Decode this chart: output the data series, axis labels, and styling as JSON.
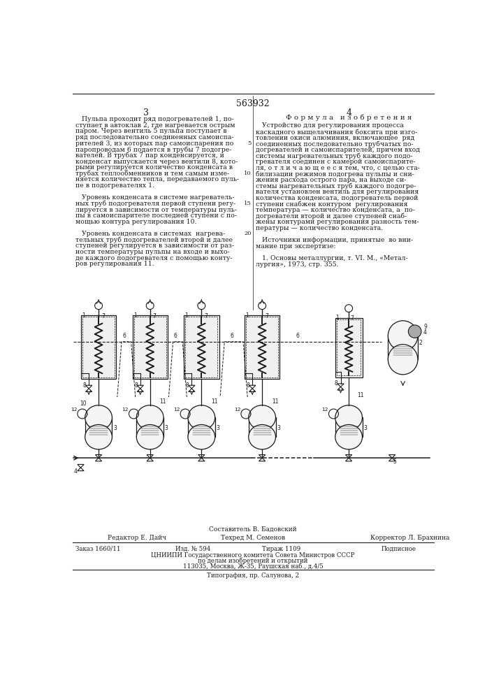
{
  "patent_number": "563932",
  "page_numbers": [
    "3",
    "4"
  ],
  "bg_color": "#ffffff",
  "text_color": "#1a1a1a",
  "left_column_text": [
    "   Пульпа проходит ряд подогревателей 1, по-",
    "ступает в автоклав 2, где нагревается острым",
    "паром. Через вентиль 5 пульпа поступает в",
    "ряд последовательно соединенных самоиспа-",
    "рителей 3, из которых пар самоиспарения по",
    "паропроводам 6 подается в трубы 7 подогре-",
    "вателей. В трубах 7 пар конденсируется, и",
    "конденсат выпускается через вентили 8, кото-",
    "рыми регулируется количество конденсата в",
    "трубах теплообменников и тем самым изме-",
    "няется количество тепла, передаваемого пуль-",
    "пе в подогревателях 1.",
    "",
    "   Уровень конденсата в системе нагреватель-",
    "ных труб подогревателя первой ступени регу-",
    "лируется в зависимости от температуры пуль-",
    "пы в самоиспарителе последней ступени с по-",
    "мощью контура регулирования 10.",
    "",
    "   Уровень конденсата в системах  нагрева-",
    "тельных труб подогревателей второй и далее",
    "ступеней регулируется в зависимости от раз-",
    "ности температуры пульпы на входе и выхо-",
    "де каждого подогревателя с помощью конту-",
    "ров регулирования 11."
  ],
  "right_column_header": "Ф о р м у л а   и з о б р е т е н и я",
  "right_column_text": [
    "   Устройство для регулирования процесса",
    "каскадного выщелачивания боксита при изго-",
    "товлении окиси алюминия, включающее  ряд",
    "соединенных последовательно трубчатых по-",
    "догревателей и самоиспарителей, причем вход",
    "системы нагревательных труб каждого подо-",
    "гревателя соединен с камерой самоиспарите-",
    "ля, о т л и ч а ю щ е е с я тем, что, с целью ста-",
    "билизации режимов подогрева пульпы и сни-",
    "жения расхода острого пара, на выходе си-",
    "стемы нагревательных труб каждого подогре-",
    "вателя установлен вентиль для регулирования",
    "количества конденсата, подогреватель первой",
    "ступени снабжен контуром  регулирования",
    "температура — количество конденсата, а  по-",
    "догреватели второй и далее ступеней снаб-",
    "жены контурами регулирования разность тем-",
    "пературы — количество конденсата.",
    "",
    "   Источники информации, принятые  во вни-",
    "мание при экспертизе:",
    "",
    "   1. Основы металлургии, т. VI. М., «Метал-",
    "лургия», 1973, стр. 355."
  ],
  "footer_composer": "Составитель В. Бадовский",
  "footer_editor": "Редактор Е. Дайч",
  "footer_tech": "Техред М. Семенов",
  "footer_corrector": "Корректор Л. Брахнина",
  "footer_order": "Заказ 1660/11",
  "footer_pub": "Изд. № 594",
  "footer_copies": "Тираж 1109",
  "footer_sub": "Подписное",
  "footer_org": "ЦНИИПИ Государственного комитета Совета Министров СССР",
  "footer_org2": "по делам изобретений и открытий",
  "footer_addr": "113035, Москва, Ж-35, Раушская наб., д.4/5",
  "footer_print": "Типография, пр. Салунова, 2"
}
